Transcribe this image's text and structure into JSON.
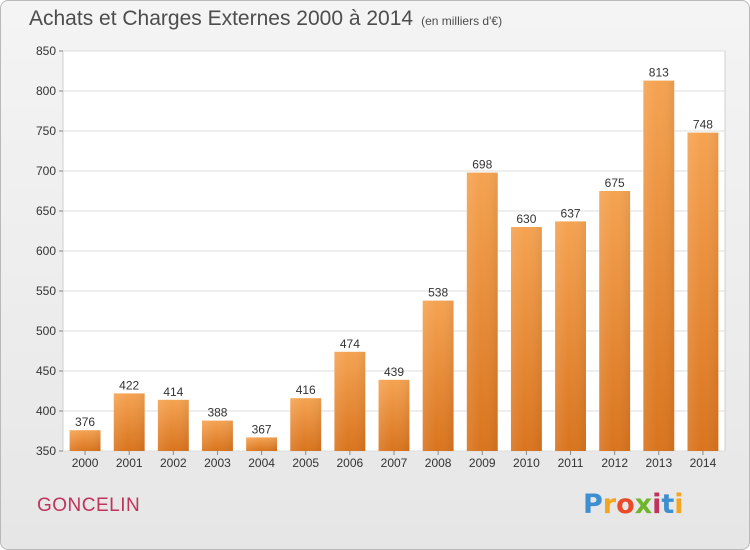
{
  "title": "Achats et Charges Externes 2000 à 2014",
  "subtitle": "(en milliers d'€)",
  "commune": "GONCELIN",
  "logo": {
    "letters": [
      "P",
      "r",
      "o",
      "x",
      "i",
      "t",
      "i"
    ],
    "colors": [
      "#3d8fd1",
      "#f2a51f",
      "#e94b2a",
      "#6fb52c",
      "#c0335a",
      "#3d8fd1",
      "#f2a51f"
    ]
  },
  "colors": {
    "bar_top": "#f5a352",
    "bar_bottom": "#d9741e",
    "title": "#4d4d4d",
    "commune": "#c0335a",
    "grid": "#dddddd"
  },
  "chart_data": {
    "type": "bar",
    "title": "Achats et Charges Externes 2000 à 2014",
    "subtitle": "(en milliers d'€)",
    "categories": [
      "2000",
      "2001",
      "2002",
      "2003",
      "2004",
      "2005",
      "2006",
      "2007",
      "2008",
      "2009",
      "2010",
      "2011",
      "2012",
      "2013",
      "2014"
    ],
    "values": [
      376,
      422,
      414,
      388,
      367,
      416,
      474,
      439,
      538,
      698,
      630,
      637,
      675,
      813,
      748
    ],
    "ylim": [
      350,
      850
    ],
    "yticks": [
      350,
      400,
      450,
      500,
      550,
      600,
      650,
      700,
      750,
      800,
      850
    ],
    "grid": true,
    "xlabel": "",
    "ylabel": ""
  }
}
